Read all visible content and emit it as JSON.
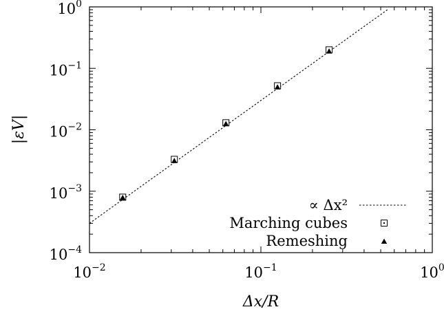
{
  "chart_data": {
    "type": "scatter",
    "x_scale": "log",
    "y_scale": "log",
    "xlim": [
      0.01,
      1
    ],
    "ylim": [
      0.0001,
      1
    ],
    "xlabel": "Δx/R",
    "ylabel": "|εV|",
    "grid": false,
    "legend_position": "bottom-right",
    "x_ticks": [
      {
        "value": 0.01,
        "base": "10",
        "exp": "−2"
      },
      {
        "value": 0.1,
        "base": "10",
        "exp": "−1"
      },
      {
        "value": 1,
        "base": "10",
        "exp": "0"
      }
    ],
    "y_ticks": [
      {
        "value": 0.0001,
        "base": "10",
        "exp": "−4"
      },
      {
        "value": 0.001,
        "base": "10",
        "exp": "−3"
      },
      {
        "value": 0.01,
        "base": "10",
        "exp": "−2"
      },
      {
        "value": 0.1,
        "base": "10",
        "exp": "−1"
      },
      {
        "value": 1,
        "base": "10",
        "exp": "0"
      }
    ],
    "series": [
      {
        "name": "∝ Δx²",
        "style": "dotted-line",
        "x": [
          0.01,
          0.55
        ],
        "y": [
          0.0003,
          0.9075
        ]
      },
      {
        "name": "Marching cubes",
        "style": "square-dot-marker",
        "x": [
          0.015625,
          0.03125,
          0.0625,
          0.125,
          0.25
        ],
        "y": [
          0.0008,
          0.0033,
          0.013,
          0.052,
          0.2
        ]
      },
      {
        "name": "Remeshing",
        "style": "filled-triangle-marker",
        "x": [
          0.015625,
          0.03125,
          0.0625,
          0.125,
          0.25
        ],
        "y": [
          0.00078,
          0.0031,
          0.0124,
          0.049,
          0.188
        ]
      }
    ]
  }
}
